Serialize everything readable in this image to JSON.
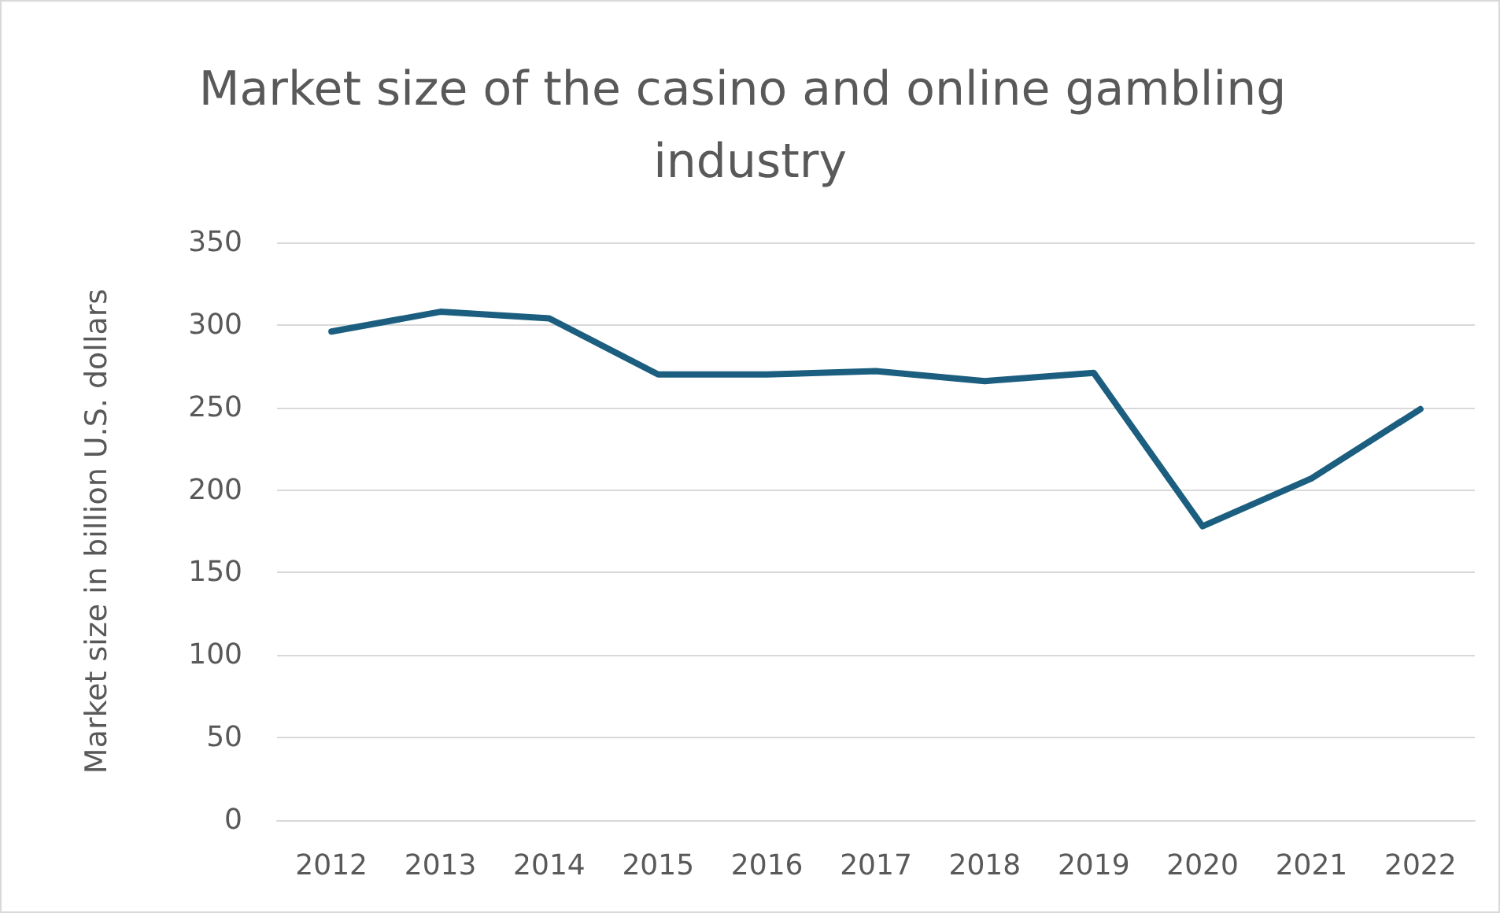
{
  "chart_data": {
    "type": "line",
    "title": "Market size of the casino and online gambling industry",
    "ylabel": "Market size in billion U.S. dollars",
    "categories": [
      "2012",
      "2013",
      "2014",
      "2015",
      "2016",
      "2017",
      "2018",
      "2019",
      "2020",
      "2021",
      "2022"
    ],
    "series": [
      {
        "color": "#1b5e7f",
        "values": [
          296,
          308,
          304,
          270,
          270,
          272,
          266,
          271,
          178,
          207,
          249
        ]
      }
    ],
    "ylim": [
      0,
      350
    ],
    "yticks": [
      0,
      50,
      100,
      150,
      200,
      250,
      300,
      350
    ],
    "grid": "y",
    "marker": "none",
    "line_style": "solid"
  }
}
